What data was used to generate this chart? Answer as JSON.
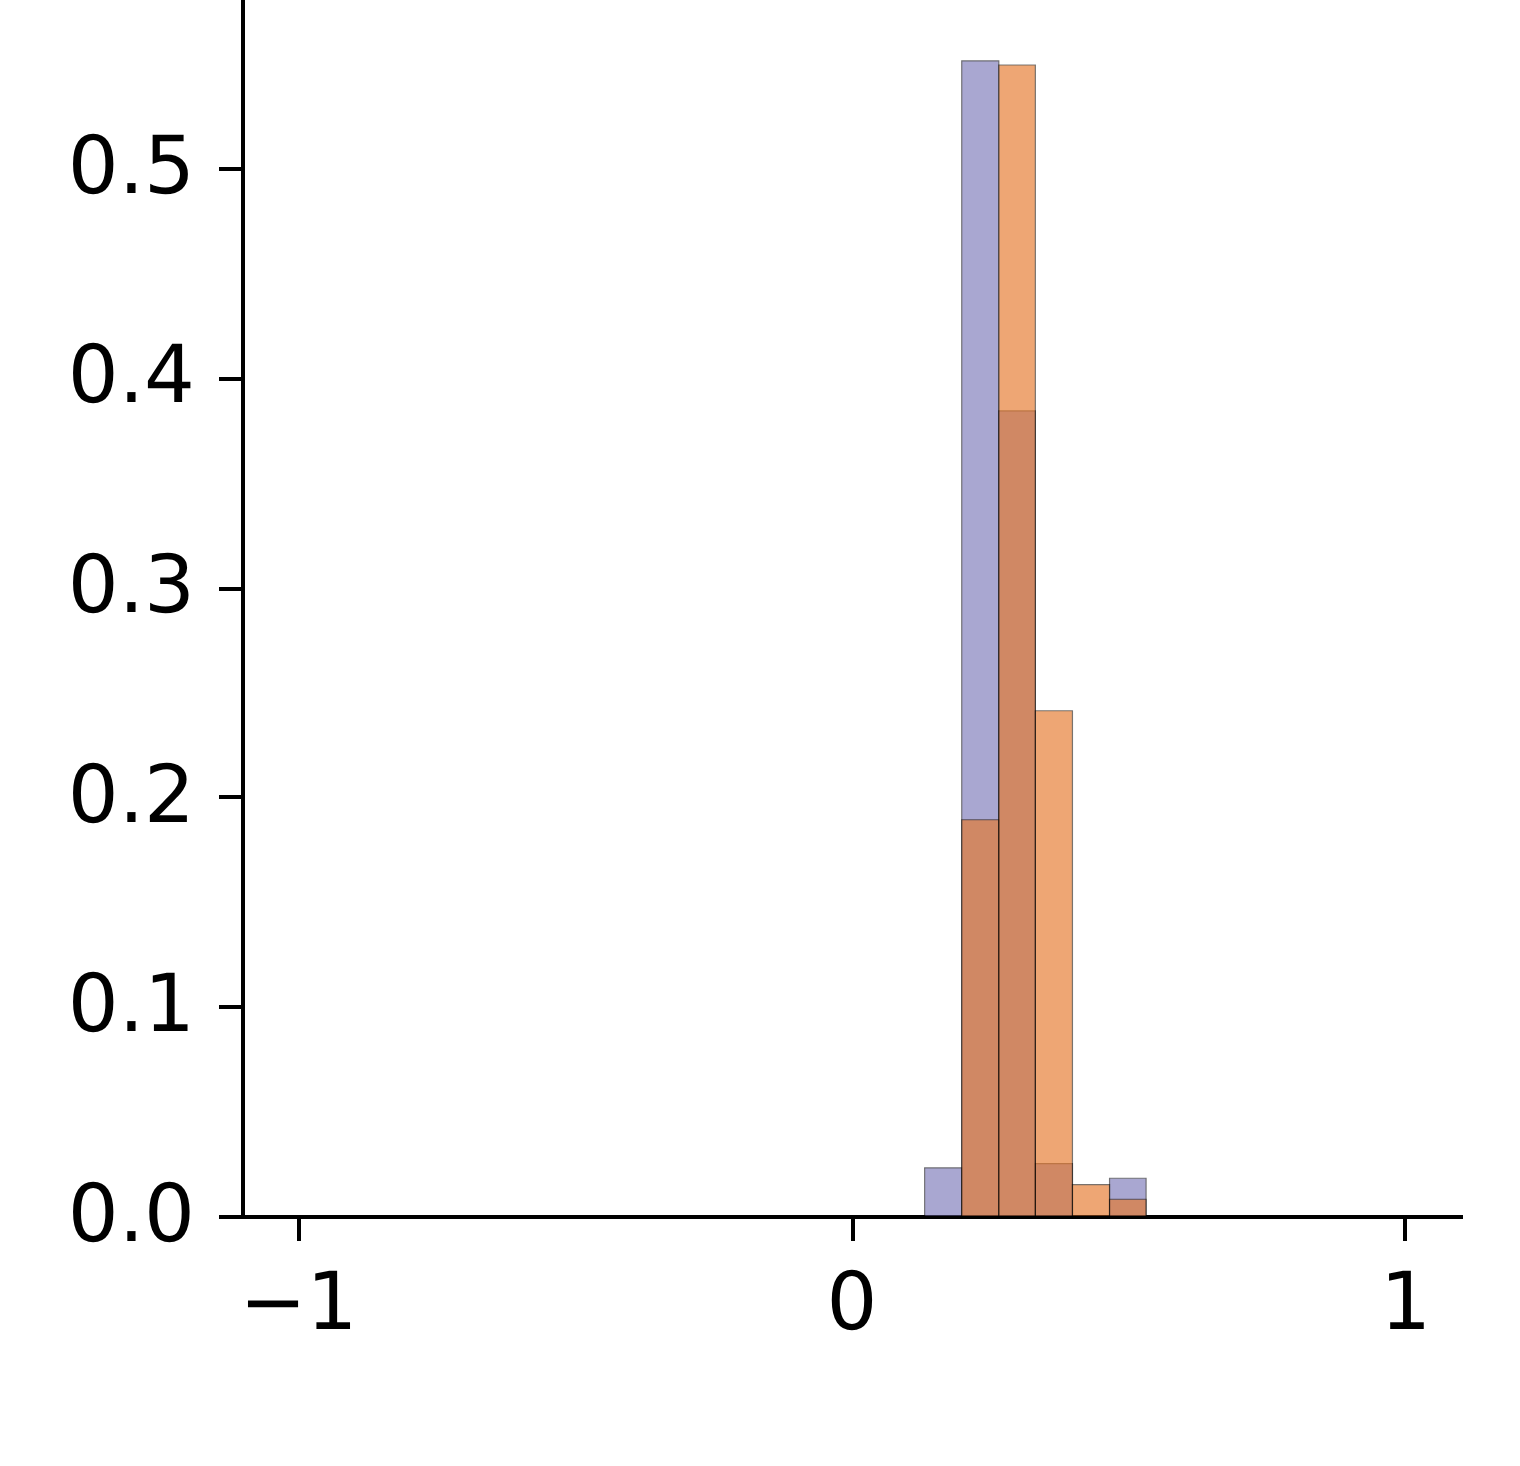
{
  "chart_data": {
    "type": "histogram",
    "bins": [
      0.133,
      0.2,
      0.267,
      0.333,
      0.4,
      0.467,
      0.533
    ],
    "series": [
      {
        "color": "#7c79b9",
        "values": [
          0.023,
          0.551,
          0.384,
          0.025,
          0,
          0.018
        ]
      },
      {
        "color": "#e6782a",
        "values": [
          0,
          0.189,
          0.549,
          0.241,
          0.015,
          0.008
        ]
      }
    ],
    "xlim": [
      -1.1,
      1.1
    ],
    "xticks": [
      -1,
      0,
      1
    ],
    "ylim": [
      0,
      0.58
    ],
    "yticks": [
      {
        "value": 0,
        "label": "0.0"
      },
      0.1,
      0.2,
      0.3,
      0.4,
      0.5
    ],
    "grid": false,
    "legend": false
  }
}
